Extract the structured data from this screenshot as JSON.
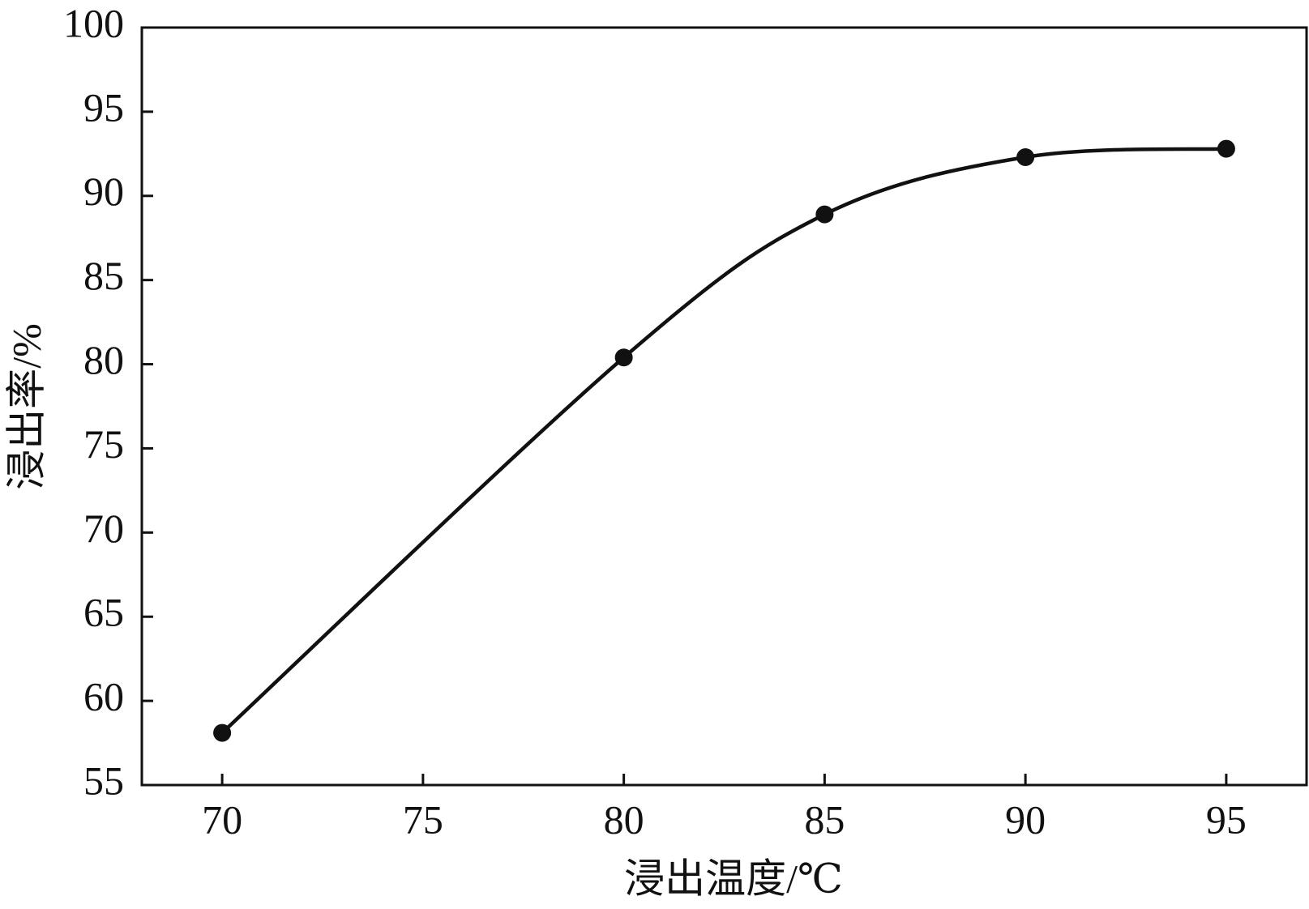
{
  "chart_data": {
    "type": "line",
    "x": [
      70,
      80,
      85,
      90,
      95
    ],
    "series": [
      {
        "color": "#111111",
        "values": [
          58.1,
          80.4,
          88.9,
          92.3,
          92.8
        ]
      }
    ],
    "xlabel": "浸出温度/℃",
    "ylabel": "浸出率/%",
    "xlim": [
      68,
      97
    ],
    "ylim": [
      55,
      100
    ],
    "xticks": [
      70,
      75,
      80,
      85,
      90,
      95
    ],
    "yticks": [
      55,
      60,
      65,
      70,
      75,
      80,
      85,
      90,
      95,
      100
    ],
    "grid": false,
    "smooth": true
  }
}
